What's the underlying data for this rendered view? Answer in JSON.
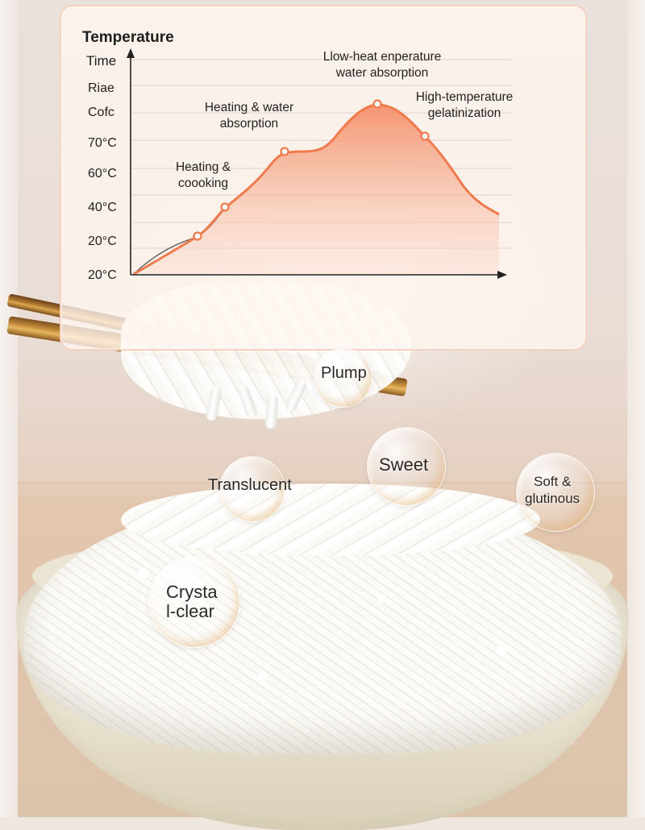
{
  "chart_data": {
    "type": "area",
    "title": "Temperature",
    "y_axis_title": "Time",
    "ytick_labels": [
      "Riae",
      "Cofc",
      "70°C",
      "60°C",
      "40°C",
      "20°C",
      "20°C"
    ],
    "stages": [
      {
        "label_lines": [
          "Heating &",
          "coooking"
        ]
      },
      {
        "label_lines": [
          "Heating & water",
          "absorption"
        ]
      },
      {
        "label_lines": [
          "Llow-heat enperature",
          "water absorption"
        ]
      },
      {
        "label_lines": [
          "High-temperature",
          "gelatinization"
        ]
      }
    ],
    "curve_profile": "rising to a peak then falling",
    "colors": {
      "curve": "#f07a4c",
      "fill_top": "#f4906a",
      "fill_bottom": "#fbd8c8",
      "grid": "#e3d2cc"
    }
  },
  "tags": {
    "plump": "Plump",
    "sweet": "Sweet",
    "translucent": "Translucent",
    "soft_line1": "Soft &",
    "soft_line2": "glutinous",
    "crystal_line1": "Crysta",
    "crystal_line2": "l-clear"
  }
}
